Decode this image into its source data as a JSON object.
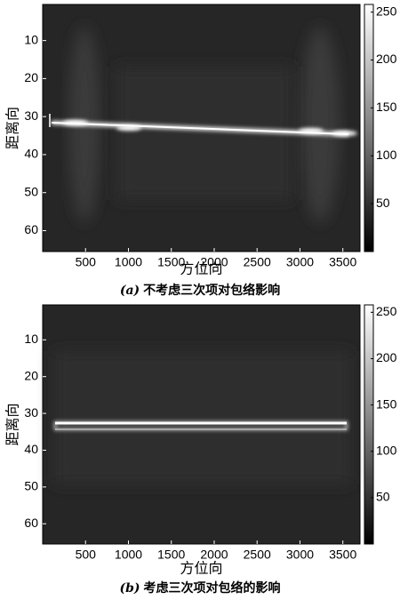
{
  "chart_data": [
    {
      "type": "heatmap",
      "colormap": "gray",
      "xlabel": "方位向",
      "ylabel": "距离向",
      "caption_label": "(a)",
      "caption": "不考虑三次项对包络影响",
      "xlim": [
        0,
        3700
      ],
      "ylim": [
        0.5,
        65.5
      ],
      "y_reversed": true,
      "xticks": [
        500,
        1000,
        1500,
        2000,
        2500,
        3000,
        3500
      ],
      "yticks": [
        10,
        20,
        30,
        40,
        50,
        60
      ],
      "clim": [
        0,
        258
      ],
      "cticks": [
        50,
        100,
        150,
        200,
        250
      ]
    },
    {
      "type": "heatmap",
      "colormap": "gray",
      "xlabel": "方位向",
      "ylabel": "距离向",
      "caption_label": "(b)",
      "caption": "考虑三次项对包络的影响",
      "xlim": [
        0,
        3700
      ],
      "ylim": [
        0.5,
        65.5
      ],
      "y_reversed": true,
      "xticks": [
        500,
        1000,
        1500,
        2000,
        2500,
        3000,
        3500
      ],
      "yticks": [
        10,
        20,
        30,
        40,
        50,
        60
      ],
      "clim": [
        0,
        258
      ],
      "cticks": [
        50,
        100,
        150,
        200,
        250
      ]
    }
  ]
}
